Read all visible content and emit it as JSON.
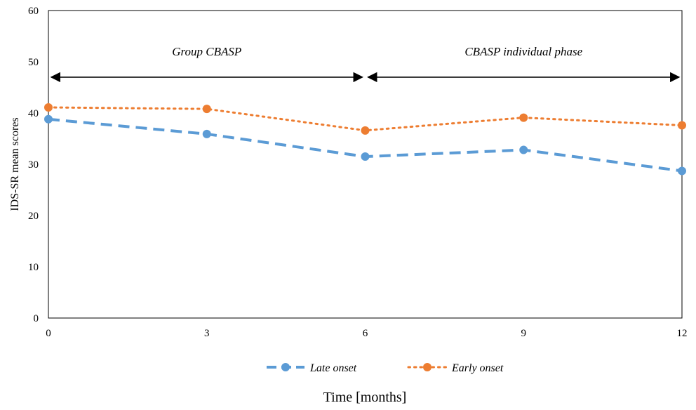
{
  "chart_data": {
    "type": "line",
    "x": [
      0,
      3,
      6,
      9,
      12
    ],
    "xlim": [
      0,
      12
    ],
    "ylim": [
      0,
      60
    ],
    "yticks": [
      0,
      10,
      20,
      30,
      40,
      50,
      60
    ],
    "xticks": [
      0,
      3,
      6,
      9,
      12
    ],
    "xlabel": "Time [months]",
    "ylabel": "IDS-SR mean scores",
    "grid": false,
    "legend_position": "bottom",
    "series": [
      {
        "name": "Late onset",
        "values": [
          38.8,
          35.9,
          31.5,
          32.8,
          28.7
        ],
        "color": "#5B9BD5",
        "style": "dashed"
      },
      {
        "name": "Early onset",
        "values": [
          41.1,
          40.8,
          36.6,
          39.1,
          37.6
        ],
        "color": "#ED7D31",
        "style": "dotted"
      }
    ],
    "annotations": [
      {
        "text": "Group CBASP",
        "x_start": 0,
        "x_end": 6,
        "y": 47
      },
      {
        "text": "CBASP individual phase",
        "x_start": 6,
        "x_end": 12,
        "y": 47
      }
    ]
  }
}
